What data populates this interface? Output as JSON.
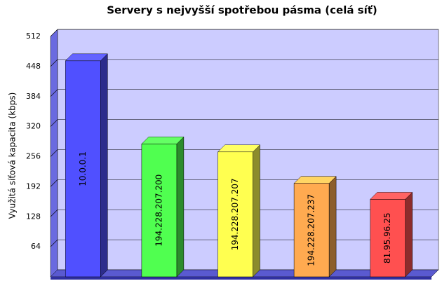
{
  "chart_data": {
    "type": "bar3d",
    "title": "Servery s nejvyšší spotřebou pásma (celá síť)",
    "y_label": "Využitá síťová kapacita (kbps)",
    "categories": [
      "10.0.0.1",
      "194.228.207.200",
      "194.228.207.207",
      "194.228.207.237",
      "81.95.96.25"
    ],
    "values": [
      460,
      283,
      266,
      199,
      165
    ],
    "colors": [
      "#5050ff",
      "#50ff50",
      "#ffff50",
      "#ffaa50",
      "#ff5050"
    ],
    "ylim": [
      0,
      512
    ],
    "yticks": [
      64,
      128,
      192,
      256,
      320,
      384,
      448,
      512
    ],
    "grid": true
  }
}
